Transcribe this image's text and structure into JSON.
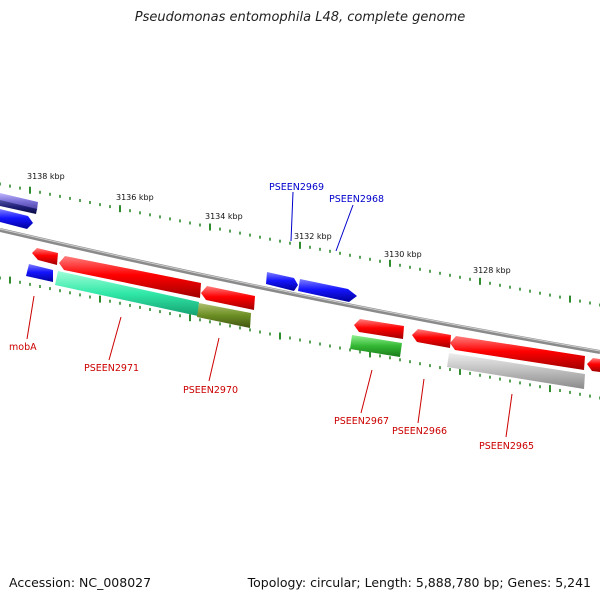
{
  "title": "Pseudomonas entomophila L48, complete genome",
  "footer": {
    "accession": "Accession: NC_008027",
    "summary": "Topology: circular; Length: 5,888,780 bp; Genes: 5,241"
  },
  "colors": {
    "backbone": "#8a8a8a",
    "tick": "#2e8b2e",
    "red": "#e00000",
    "blue": "#1a1aff",
    "navy": "#1e1e78",
    "lavender": "#7a6fd6",
    "aqua": "#2de0a0",
    "olive": "#6b8e23",
    "green": "#3cb43c",
    "gray": "#b4b4b4",
    "red_label": "#cc0000",
    "blue_label": "#0000cc"
  },
  "kbp_labels": [
    "3138 kbp",
    "3136 kbp",
    "3134 kbp",
    "3132 kbp",
    "3130 kbp",
    "3128 kbp"
  ],
  "gene_labels_top": [
    "PSEEN2969",
    "PSEEN2968"
  ],
  "gene_labels_bottom": [
    "mobA",
    "PSEEN2971",
    "PSEEN2970",
    "PSEEN2967",
    "PSEEN2966",
    "PSEEN2965"
  ]
}
